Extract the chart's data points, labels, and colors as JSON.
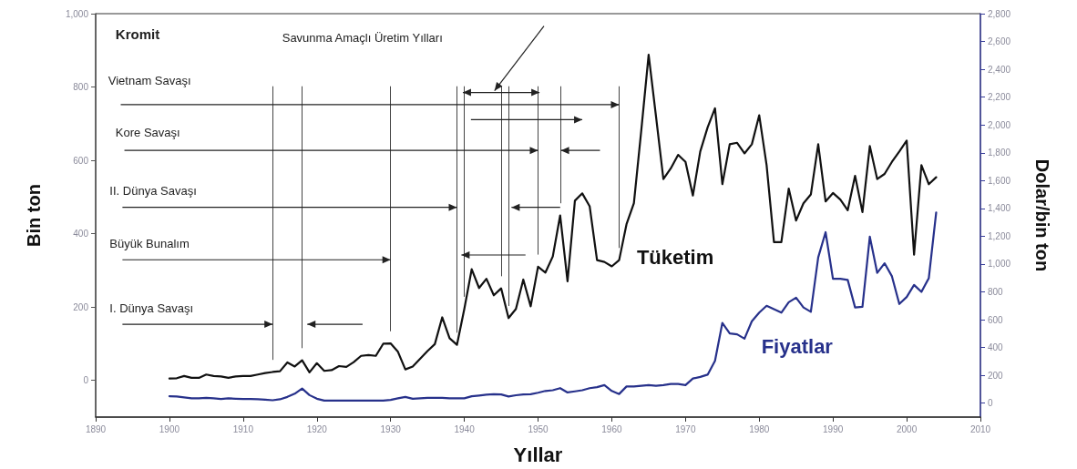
{
  "chart_data": {
    "type": "line",
    "xlabel": "Yıllar",
    "ylabel": "Bin ton",
    "y2label": "Dolar/bin ton",
    "xlim": [
      1890,
      2010
    ],
    "xticks": [
      1890,
      1900,
      1910,
      1920,
      1930,
      1940,
      1950,
      1960,
      1970,
      1980,
      1990,
      2000,
      2010
    ],
    "ylim": [
      -100,
      1000
    ],
    "yticks": [
      0,
      200,
      400,
      600,
      800,
      {
        "value": 1000,
        "label": "1,000"
      }
    ],
    "y2lim": [
      -100,
      2800
    ],
    "y2ticks": [
      0,
      200,
      400,
      600,
      800,
      {
        "value": 1000,
        "label": "1,000"
      },
      {
        "value": 1200,
        "label": "1,200"
      },
      {
        "value": 1400,
        "label": "1,400"
      },
      {
        "value": 1600,
        "label": "1,600"
      },
      {
        "value": 1800,
        "label": "1,800"
      },
      {
        "value": 2000,
        "label": "2,000"
      },
      {
        "value": 2200,
        "label": "2,200"
      },
      {
        "value": 2400,
        "label": "2,400"
      },
      {
        "value": 2600,
        "label": "2,600"
      },
      {
        "value": 2800,
        "label": "2,800"
      }
    ],
    "x": [
      1900,
      1901,
      1902,
      1903,
      1904,
      1905,
      1906,
      1907,
      1908,
      1909,
      1910,
      1911,
      1912,
      1913,
      1914,
      1915,
      1916,
      1917,
      1918,
      1919,
      1920,
      1921,
      1922,
      1923,
      1924,
      1925,
      1926,
      1927,
      1928,
      1929,
      1930,
      1931,
      1932,
      1933,
      1934,
      1935,
      1936,
      1937,
      1938,
      1939,
      1940,
      1941,
      1942,
      1943,
      1944,
      1945,
      1946,
      1947,
      1948,
      1949,
      1950,
      1951,
      1952,
      1953,
      1954,
      1955,
      1956,
      1957,
      1958,
      1959,
      1960,
      1961,
      1962,
      1963,
      1964,
      1965,
      1966,
      1967,
      1968,
      1969,
      1970,
      1971,
      1972,
      1973,
      1974,
      1975,
      1976,
      1977,
      1978,
      1979,
      1980,
      1981,
      1982,
      1983,
      1984,
      1985,
      1986,
      1987,
      1988,
      1989,
      1990,
      1991,
      1992,
      1993,
      1994,
      1995,
      1996,
      1997,
      1998,
      1999,
      2000,
      2001,
      2002,
      2003,
      2004
    ],
    "series": [
      {
        "name": "Tüketim",
        "color": "#111111",
        "values": [
          5,
          6,
          12,
          7,
          7,
          16,
          12,
          11,
          7,
          11,
          12,
          12,
          16,
          20,
          23,
          25,
          49,
          38,
          55,
          22,
          47,
          26,
          28,
          39,
          37,
          50,
          67,
          69,
          67,
          100,
          101,
          78,
          30,
          38,
          59,
          80,
          99,
          172,
          115,
          97,
          195,
          303,
          252,
          277,
          232,
          251,
          170,
          195,
          275,
          202,
          310,
          294,
          338,
          450,
          270,
          490,
          510,
          475,
          328,
          323,
          311,
          328,
          426,
          483,
          681,
          888,
          720,
          549,
          578,
          615,
          596,
          504,
          624,
          690,
          742,
          535,
          644,
          648,
          619,
          644,
          723,
          587,
          377,
          377,
          523,
          436,
          483,
          507,
          644,
          488,
          511,
          493,
          464,
          558,
          459,
          639,
          549,
          563,
          596,
          624,
          654,
          343,
          587,
          535,
          554
        ]
      },
      {
        "name": "Fiyatlar",
        "color": "#27318b",
        "axis": "y2",
        "values": [
          50,
          48,
          42,
          35,
          35,
          38,
          35,
          30,
          35,
          32,
          30,
          30,
          28,
          25,
          21,
          28,
          45,
          68,
          105,
          58,
          32,
          19,
          19,
          19,
          19,
          19,
          19,
          19,
          19,
          19,
          24,
          35,
          45,
          32,
          35,
          38,
          38,
          38,
          35,
          35,
          35,
          50,
          55,
          61,
          65,
          63,
          48,
          57,
          63,
          65,
          75,
          88,
          93,
          108,
          77,
          85,
          93,
          108,
          115,
          130,
          88,
          66,
          120,
          120,
          125,
          130,
          125,
          130,
          138,
          138,
          130,
          177,
          189,
          205,
          304,
          577,
          502,
          495,
          464,
          589,
          651,
          700,
          676,
          651,
          726,
          758,
          688,
          657,
          1048,
          1229,
          894,
          894,
          886,
          688,
          693,
          1197,
          937,
          1006,
          912,
          713,
          763,
          850,
          800,
          899,
          1371
        ]
      }
    ],
    "ref_lines": [
      {
        "axis": "x",
        "value": 1914
      },
      {
        "axis": "x",
        "value": 1918
      },
      {
        "axis": "x",
        "value": 1930
      },
      {
        "axis": "x",
        "value": 1939
      },
      {
        "axis": "x",
        "value": 1940
      },
      {
        "axis": "x",
        "value": 1945
      },
      {
        "axis": "x",
        "value": 1946
      },
      {
        "axis": "x",
        "value": 1950
      },
      {
        "axis": "x",
        "value": 1953
      },
      {
        "axis": "x",
        "value": 1961
      }
    ],
    "annotations": [
      "Kromit",
      "Savunma Amaçlı Üretim Yılları",
      "Vietnam Savaşı",
      "Kore Savaşı",
      {
        "text": "II. Dünya Savaşı",
        "x": 1939,
        "y": 472
      },
      {
        "text": "Büyük Bunalım",
        "x": 1930,
        "y": 329
      },
      {
        "text": "I. Dünya Savaşı",
        "x": 1914,
        "y": 153
      }
    ]
  }
}
